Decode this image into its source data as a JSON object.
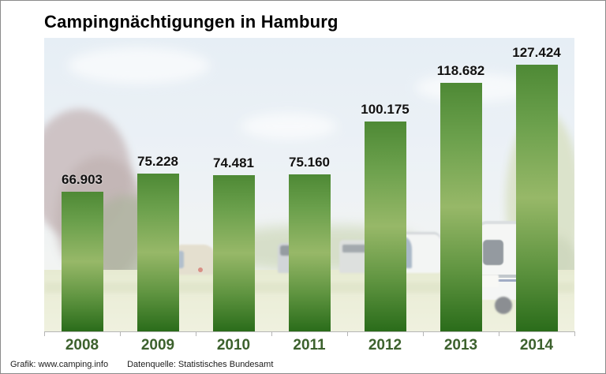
{
  "title": "Campingnächtigungen in Hamburg",
  "footer": {
    "credit": "Grafik: www.camping.info",
    "source": "Datenquelle: Statistisches Bundesamt"
  },
  "colors": {
    "bar_top": "#4e8935",
    "bar_mid": "#97b868",
    "bar_bottom": "#2a6c1a",
    "year_label": "#3c612d",
    "value_label": "#111111",
    "axis": "#b5b5b5"
  },
  "chart_data": {
    "type": "bar",
    "title": "Campingnächtigungen in Hamburg",
    "categories": [
      "2008",
      "2009",
      "2010",
      "2011",
      "2012",
      "2013",
      "2014"
    ],
    "values": [
      66903,
      75228,
      74481,
      75160,
      100175,
      118682,
      127424
    ],
    "value_labels": [
      "66.903",
      "75.228",
      "74.481",
      "75.160",
      "100.175",
      "118.682",
      "127.424"
    ],
    "ylim": [
      0,
      127424
    ],
    "grid": false,
    "legend": false,
    "background": "campsite-photo"
  }
}
